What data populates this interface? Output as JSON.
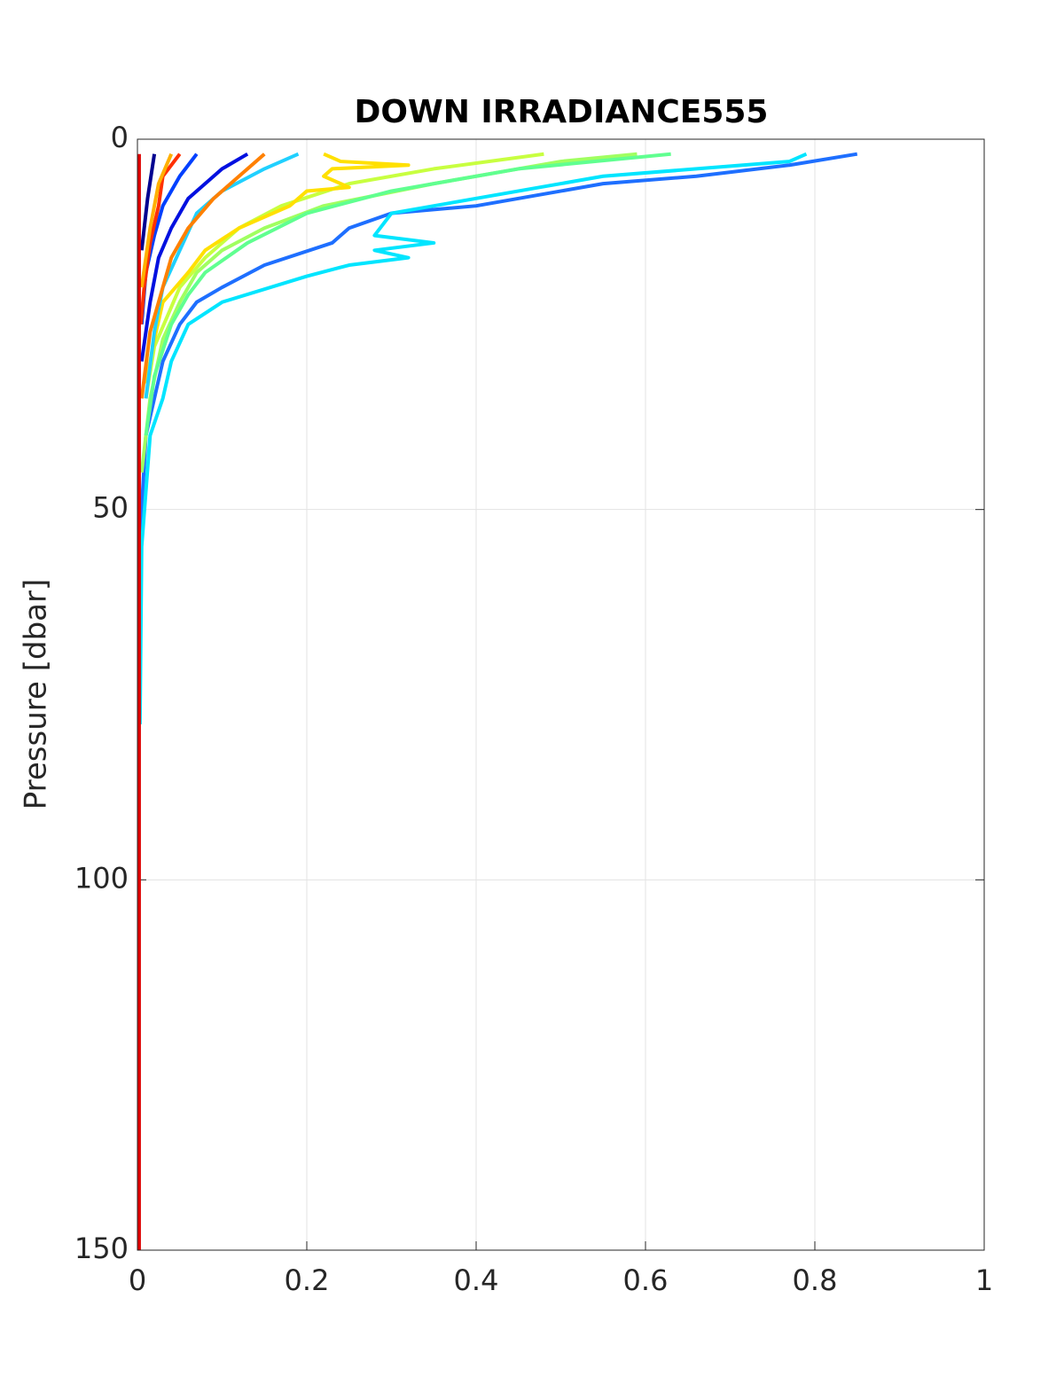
{
  "chart_data": {
    "type": "line",
    "title": "DOWN IRRADIANCE555",
    "ylabel": "Pressure [dbar]",
    "xlim": [
      0,
      1
    ],
    "xticks": [
      0,
      0.2,
      0.4,
      0.6,
      0.8,
      1
    ],
    "ylim": [
      0,
      150
    ],
    "yticks": [
      0,
      50,
      100,
      150
    ],
    "y_reversed": true,
    "grid": true,
    "series": [
      {
        "color": "#1e6fff",
        "x": [
          0.85,
          0.77,
          0.66,
          0.55,
          0.4,
          0.3,
          0.25,
          0.23,
          0.15,
          0.1,
          0.07,
          0.05,
          0.03,
          0.02,
          0.01,
          0.005,
          0.003
        ],
        "values": [
          2,
          3.5,
          5,
          6,
          9,
          10,
          12,
          14,
          17,
          20,
          22,
          25,
          30,
          35,
          40,
          50,
          60
        ]
      },
      {
        "color": "#00e5ff",
        "x": [
          0.79,
          0.77,
          0.55,
          0.4,
          0.3,
          0.28,
          0.35,
          0.28,
          0.32,
          0.25,
          0.2,
          0.1,
          0.06,
          0.04,
          0.03,
          0.015,
          0.005,
          0.003
        ],
        "values": [
          2,
          3,
          5,
          8,
          10,
          13,
          14,
          15,
          16,
          17,
          18.5,
          22,
          25,
          30,
          35,
          40,
          55,
          79
        ]
      },
      {
        "color": "#a0ff60",
        "x": [
          0.59,
          0.5,
          0.35,
          0.22,
          0.15,
          0.1,
          0.07,
          0.05,
          0.03,
          0.015,
          0.005
        ],
        "values": [
          2,
          3,
          6,
          9,
          12,
          15,
          18,
          22,
          27,
          35,
          45
        ]
      },
      {
        "color": "#60ff90",
        "x": [
          0.63,
          0.45,
          0.3,
          0.2,
          0.13,
          0.08,
          0.06,
          0.04,
          0.02,
          0.01
        ],
        "values": [
          2,
          4,
          7,
          10,
          14,
          18,
          21,
          25,
          32,
          40
        ]
      },
      {
        "color": "#c8ff40",
        "x": [
          0.48,
          0.35,
          0.25,
          0.17,
          0.12,
          0.08,
          0.05,
          0.02,
          0.01
        ],
        "values": [
          2,
          4,
          6,
          9,
          12,
          16,
          20,
          28,
          35
        ]
      },
      {
        "color": "#ffe000",
        "x": [
          0.22,
          0.24,
          0.32,
          0.23,
          0.22,
          0.25,
          0.2,
          0.18,
          0.12,
          0.08,
          0.06,
          0.03,
          0.02,
          0.01
        ],
        "values": [
          2,
          3,
          3.5,
          4,
          5,
          6.5,
          7,
          9,
          12,
          15,
          18,
          22,
          27,
          33
        ]
      },
      {
        "color": "#20d0ff",
        "x": [
          0.19,
          0.15,
          0.1,
          0.07,
          0.05,
          0.03,
          0.02,
          0.01
        ],
        "values": [
          2,
          4,
          7,
          10,
          15,
          20,
          26,
          35
        ]
      },
      {
        "color": "#ff8000",
        "x": [
          0.15,
          0.12,
          0.09,
          0.06,
          0.04,
          0.03,
          0.015,
          0.005
        ],
        "values": [
          2,
          5,
          8,
          12,
          16,
          20,
          26,
          35
        ]
      },
      {
        "color": "#0010e0",
        "x": [
          0.13,
          0.1,
          0.06,
          0.04,
          0.025,
          0.015,
          0.005
        ],
        "values": [
          2,
          4,
          8,
          12,
          16,
          22,
          30
        ]
      },
      {
        "color": "#0040ff",
        "x": [
          0.07,
          0.05,
          0.03,
          0.02,
          0.01,
          0.005
        ],
        "values": [
          2,
          5,
          9,
          13,
          18,
          25
        ]
      },
      {
        "color": "#ff3000",
        "x": [
          0.05,
          0.03,
          0.025,
          0.015,
          0.008,
          0.004
        ],
        "values": [
          2,
          5,
          9,
          14,
          20,
          25
        ]
      },
      {
        "color": "#ffb000",
        "x": [
          0.04,
          0.025,
          0.015,
          0.005
        ],
        "values": [
          2,
          6,
          12,
          20
        ]
      },
      {
        "color": "#000090",
        "x": [
          0.02,
          0.012,
          0.005
        ],
        "values": [
          2,
          8,
          15
        ]
      },
      {
        "color": "#e00000",
        "x": [
          0.002,
          0.002
        ],
        "values": [
          2,
          150
        ]
      }
    ]
  }
}
